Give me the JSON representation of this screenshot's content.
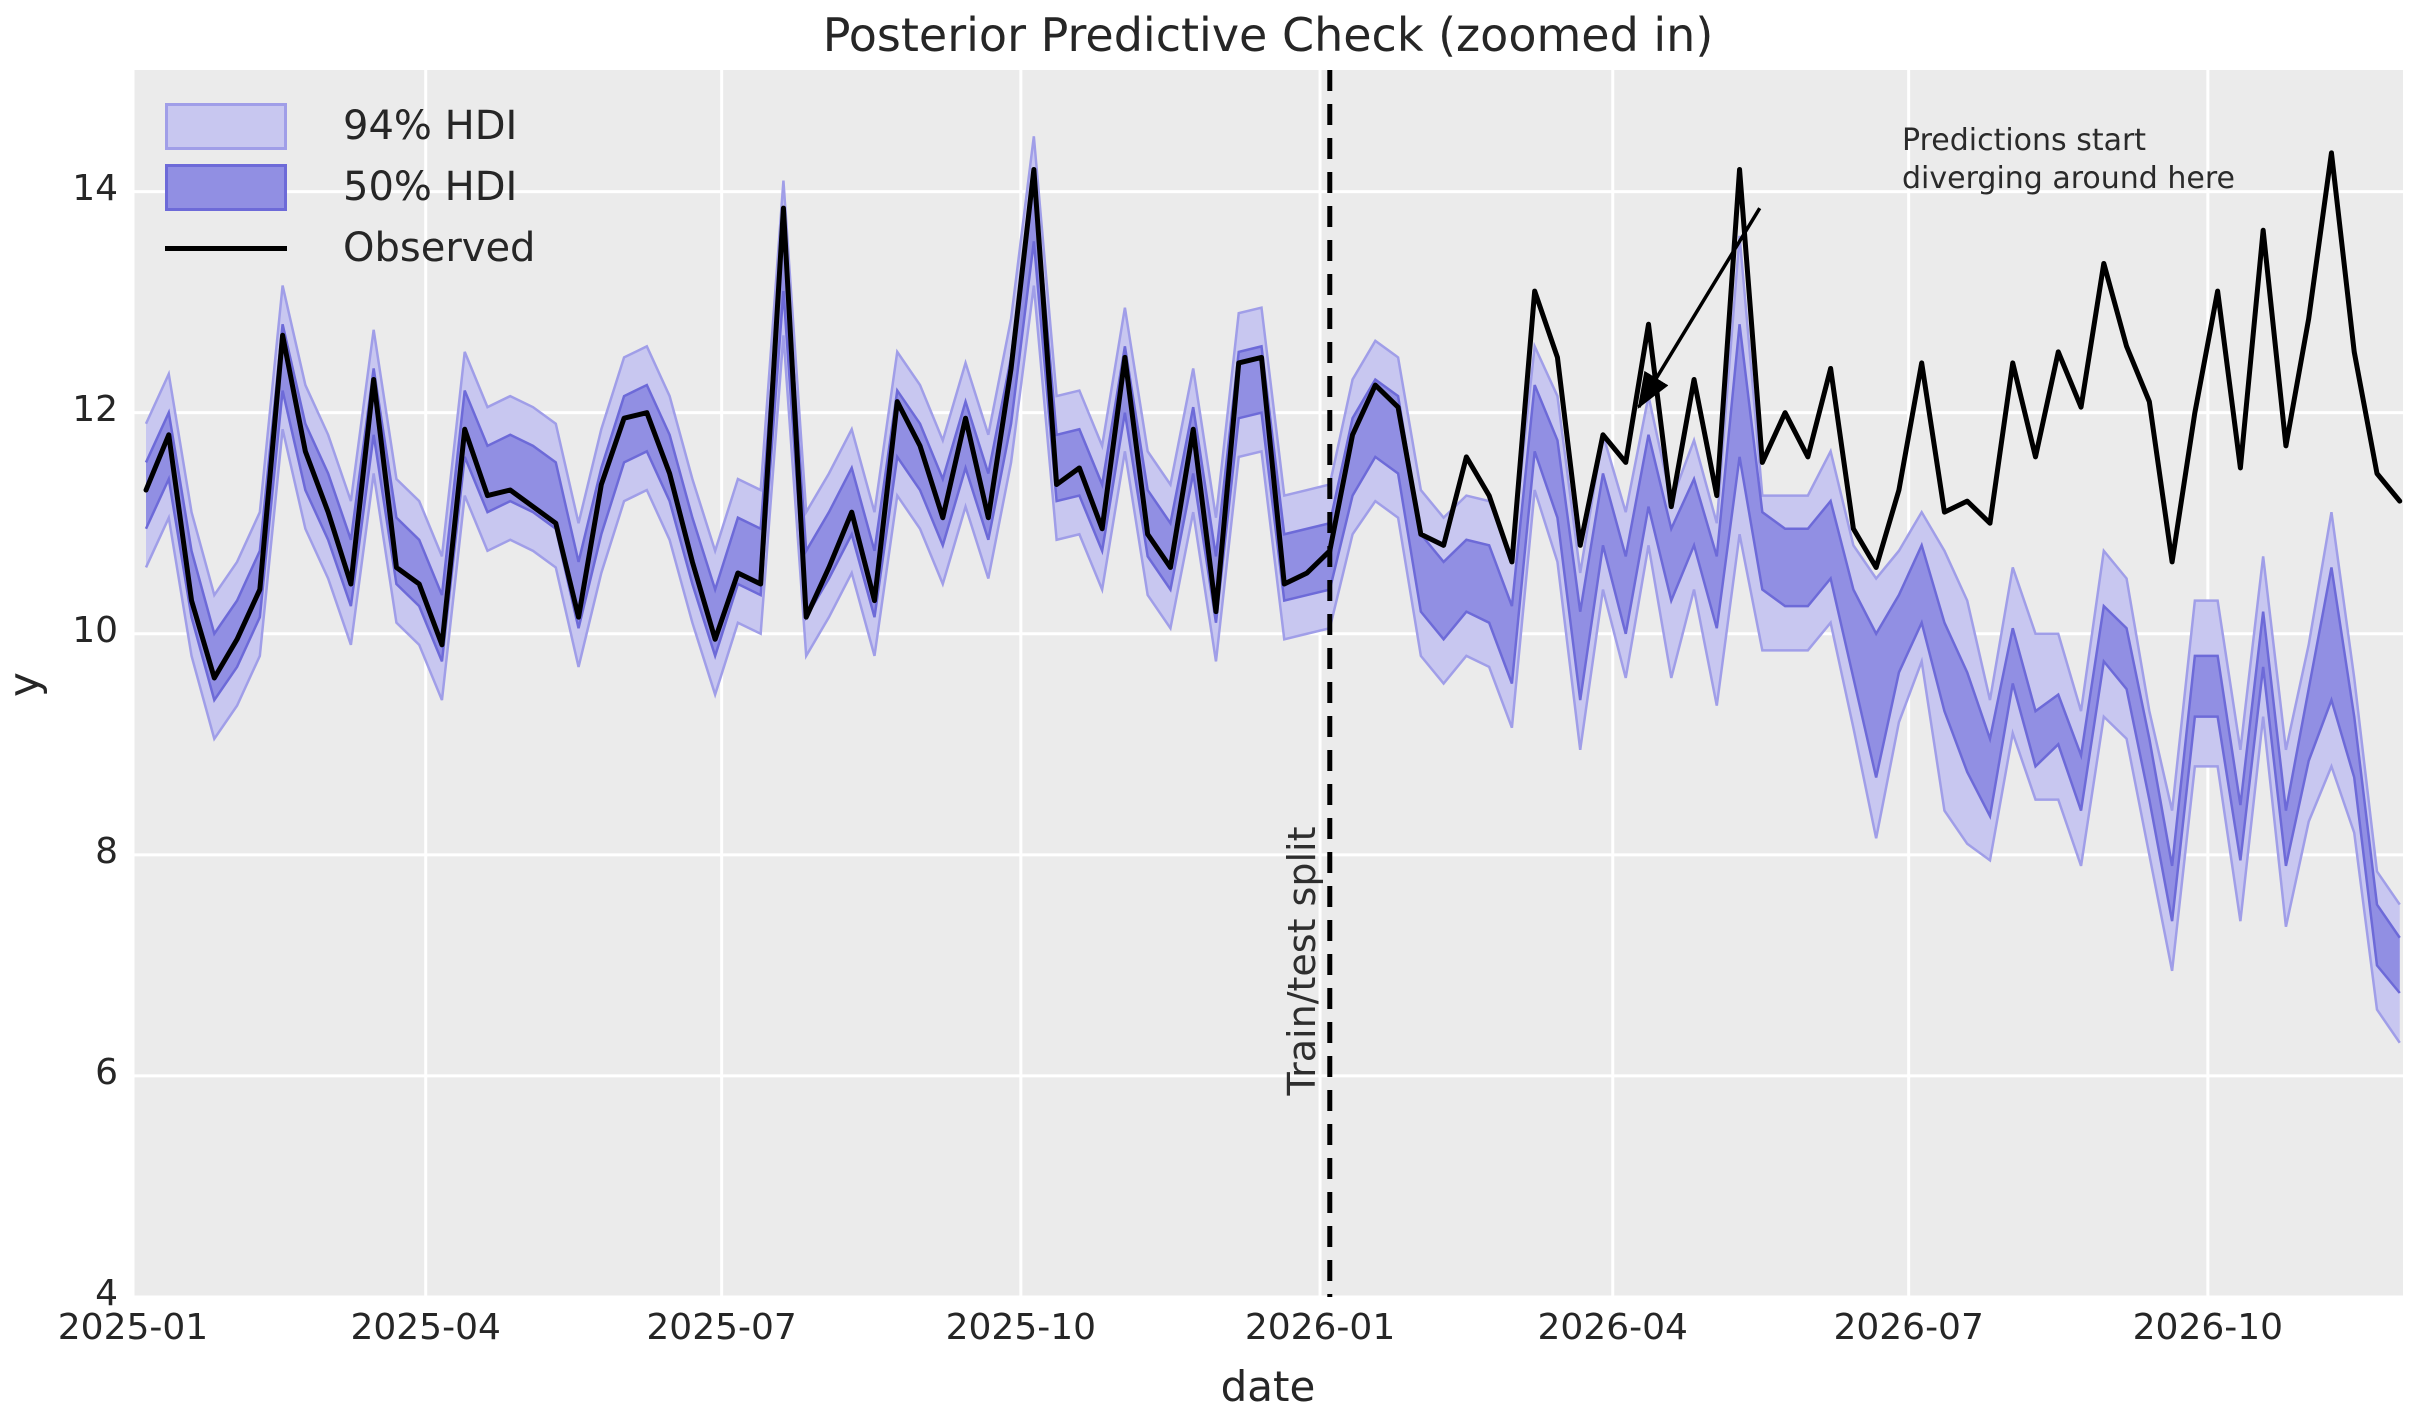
{
  "title": "Posterior Predictive Check (zoomed in)",
  "axis": {
    "xlabel": "date",
    "ylabel": "y",
    "x_ticks": [
      {
        "label": "2025-01",
        "day": 0
      },
      {
        "label": "2025-04",
        "day": 90
      },
      {
        "label": "2025-07",
        "day": 181
      },
      {
        "label": "2025-10",
        "day": 273
      },
      {
        "label": "2026-01",
        "day": 365
      },
      {
        "label": "2026-04",
        "day": 455
      },
      {
        "label": "2026-07",
        "day": 546
      },
      {
        "label": "2026-10",
        "day": 638
      }
    ],
    "y_ticks": [
      4,
      6,
      8,
      10,
      12,
      14
    ]
  },
  "legend": [
    {
      "label": "94% HDI",
      "kind": "band94"
    },
    {
      "label": "50% HDI",
      "kind": "band50"
    },
    {
      "label": "Observed",
      "kind": "line"
    }
  ],
  "split_label": "Train/test split",
  "annotation_lines": [
    "Predictions start",
    "diverging around here"
  ],
  "colors": {
    "plot_bg": "#ebebeb",
    "grid": "#ffffff",
    "observed": "#000000",
    "hdi94_fill": "#c8c7f0",
    "hdi94_edge": "#a09ee8",
    "hdi50_fill": "#918fe3",
    "hdi50_edge": "#6d6ad8",
    "split_line": "#000000",
    "text": "#262626"
  },
  "chart_data": {
    "type": "line",
    "title": "Posterior Predictive Check (zoomed in)",
    "xlabel": "date",
    "ylabel": "y",
    "xlim_days": [
      0,
      698
    ],
    "ylim": [
      4,
      15.1
    ],
    "grid": true,
    "legend_position": "upper left",
    "x_start_date": "2025-01-05",
    "x_start_day": 4,
    "x_step_days": 7,
    "n_points": 100,
    "split_date": "2026-01-04",
    "split_day": 368,
    "split_index": 52,
    "arrow": {
      "tail_day": 500.2,
      "tail_val": 13.85,
      "tip_day": 463.0,
      "tip_val": 12.05
    },
    "dates": [
      "2025-01-05",
      "2025-01-12",
      "2025-01-19",
      "2025-01-26",
      "2025-02-02",
      "2025-02-09",
      "2025-02-16",
      "2025-02-23",
      "2025-03-02",
      "2025-03-09",
      "2025-03-16",
      "2025-03-23",
      "2025-03-30",
      "2025-04-06",
      "2025-04-13",
      "2025-04-20",
      "2025-04-27",
      "2025-05-04",
      "2025-05-11",
      "2025-05-18",
      "2025-05-25",
      "2025-06-01",
      "2025-06-08",
      "2025-06-15",
      "2025-06-22",
      "2025-06-29",
      "2025-07-06",
      "2025-07-13",
      "2025-07-20",
      "2025-07-27",
      "2025-08-03",
      "2025-08-10",
      "2025-08-17",
      "2025-08-24",
      "2025-08-31",
      "2025-09-07",
      "2025-09-14",
      "2025-09-21",
      "2025-09-28",
      "2025-10-05",
      "2025-10-12",
      "2025-10-19",
      "2025-10-26",
      "2025-11-02",
      "2025-11-09",
      "2025-11-16",
      "2025-11-23",
      "2025-11-30",
      "2025-12-07",
      "2025-12-14",
      "2025-12-21",
      "2025-12-28",
      "2026-01-04",
      "2026-01-11",
      "2026-01-18",
      "2026-01-25",
      "2026-02-01",
      "2026-02-08",
      "2026-02-15",
      "2026-02-22",
      "2026-03-01",
      "2026-03-08",
      "2026-03-15",
      "2026-03-22",
      "2026-03-29",
      "2026-04-05",
      "2026-04-12",
      "2026-04-19",
      "2026-04-26",
      "2026-05-03",
      "2026-05-10",
      "2026-05-17",
      "2026-05-24",
      "2026-05-31",
      "2026-06-07",
      "2026-06-14",
      "2026-06-21",
      "2026-06-28",
      "2026-07-05",
      "2026-07-12",
      "2026-07-19",
      "2026-07-26",
      "2026-08-02",
      "2026-08-09",
      "2026-08-16",
      "2026-08-23",
      "2026-08-30",
      "2026-09-06",
      "2026-09-13",
      "2026-09-20",
      "2026-09-27",
      "2026-10-04",
      "2026-10-11",
      "2026-10-18",
      "2026-10-25",
      "2026-11-01",
      "2026-11-08",
      "2026-11-15",
      "2026-11-22",
      "2026-11-29"
    ],
    "series": [
      {
        "name": "Observed",
        "values": [
          11.3,
          11.8,
          10.3,
          9.6,
          9.95,
          10.4,
          12.7,
          11.65,
          11.1,
          10.45,
          12.3,
          10.6,
          10.45,
          9.9,
          11.85,
          11.25,
          11.3,
          11.15,
          11.0,
          10.15,
          11.35,
          11.95,
          12.0,
          11.45,
          10.65,
          9.95,
          10.55,
          10.45,
          13.85,
          10.15,
          10.6,
          11.1,
          10.3,
          12.1,
          11.7,
          11.05,
          11.95,
          11.05,
          12.4,
          14.2,
          11.35,
          11.5,
          10.95,
          12.5,
          10.9,
          10.6,
          11.85,
          10.2,
          12.45,
          12.5,
          10.45,
          10.55,
          10.75,
          11.8,
          12.25,
          12.05,
          10.9,
          10.8,
          11.6,
          11.25,
          10.65,
          13.1,
          12.5,
          10.8,
          11.8,
          11.55,
          12.8,
          11.15,
          12.3,
          11.25,
          14.2,
          11.55,
          12.0,
          11.6,
          12.4,
          10.95,
          10.6,
          11.3,
          12.45,
          11.1,
          11.2,
          11.0,
          12.45,
          11.6,
          12.55,
          12.05,
          13.35,
          12.6,
          12.1,
          10.65,
          12.0,
          13.1,
          11.5,
          13.65,
          11.7,
          12.85,
          14.35,
          12.55,
          11.45,
          11.2
        ]
      },
      {
        "name": "hdi94_lower",
        "values": [
          10.6,
          11.05,
          9.8,
          9.05,
          9.35,
          9.8,
          11.85,
          10.95,
          10.5,
          9.9,
          11.45,
          10.1,
          9.9,
          9.4,
          11.25,
          10.75,
          10.85,
          10.75,
          10.6,
          9.7,
          10.55,
          11.2,
          11.3,
          10.85,
          10.1,
          9.45,
          10.1,
          10.0,
          12.7,
          9.8,
          10.15,
          10.55,
          9.8,
          11.25,
          10.95,
          10.45,
          11.15,
          10.5,
          11.55,
          13.15,
          10.85,
          10.9,
          10.4,
          11.65,
          10.35,
          10.05,
          11.1,
          9.75,
          11.6,
          11.65,
          9.95,
          10.0,
          10.05,
          10.9,
          11.2,
          11.05,
          9.8,
          9.55,
          9.8,
          9.7,
          9.15,
          11.3,
          10.65,
          8.95,
          10.4,
          9.6,
          10.8,
          9.6,
          10.4,
          9.35,
          10.9,
          9.85,
          9.85,
          9.85,
          10.1,
          9.15,
          8.15,
          9.2,
          9.75,
          8.4,
          8.1,
          7.95,
          9.1,
          8.5,
          8.5,
          7.9,
          9.25,
          9.05,
          8.0,
          6.95,
          8.8,
          8.8,
          7.4,
          9.25,
          7.35,
          8.3,
          8.8,
          8.2,
          6.6,
          6.3
        ]
      },
      {
        "name": "hdi50_lower",
        "values": [
          10.95,
          11.4,
          10.15,
          9.4,
          9.7,
          10.15,
          12.2,
          11.3,
          10.85,
          10.25,
          11.8,
          10.45,
          10.25,
          9.75,
          11.6,
          11.1,
          11.2,
          11.1,
          10.95,
          10.05,
          10.9,
          11.55,
          11.65,
          11.2,
          10.45,
          9.8,
          10.45,
          10.35,
          13.1,
          10.15,
          10.5,
          10.9,
          10.15,
          11.6,
          11.3,
          10.8,
          11.5,
          10.85,
          11.9,
          13.55,
          11.2,
          11.25,
          10.75,
          12.0,
          10.7,
          10.4,
          11.45,
          10.1,
          11.95,
          12.0,
          10.3,
          10.35,
          10.4,
          11.25,
          11.6,
          11.45,
          10.2,
          9.95,
          10.2,
          10.1,
          9.55,
          11.65,
          11.05,
          9.4,
          10.8,
          10.0,
          11.15,
          10.3,
          10.8,
          10.05,
          11.6,
          10.4,
          10.25,
          10.25,
          10.5,
          9.6,
          8.7,
          9.65,
          10.1,
          9.3,
          8.75,
          8.35,
          9.55,
          8.8,
          9.0,
          8.4,
          9.75,
          9.5,
          8.5,
          7.4,
          9.25,
          9.25,
          7.95,
          9.7,
          7.9,
          8.85,
          9.4,
          8.7,
          7.0,
          6.75
        ]
      },
      {
        "name": "hdi50_upper",
        "values": [
          11.55,
          12.0,
          10.75,
          10.0,
          10.3,
          10.75,
          12.8,
          11.9,
          11.45,
          10.85,
          12.4,
          11.05,
          10.85,
          10.35,
          12.2,
          11.7,
          11.8,
          11.7,
          11.55,
          10.65,
          11.5,
          12.15,
          12.25,
          11.8,
          11.05,
          10.4,
          11.05,
          10.95,
          13.7,
          10.75,
          11.1,
          11.5,
          10.75,
          12.2,
          11.9,
          11.4,
          12.1,
          11.45,
          12.5,
          14.15,
          11.8,
          11.85,
          11.35,
          12.6,
          11.3,
          11.0,
          12.05,
          10.7,
          12.55,
          12.6,
          10.9,
          10.95,
          11.0,
          11.95,
          12.3,
          12.15,
          10.9,
          10.65,
          10.85,
          10.8,
          10.25,
          12.25,
          11.75,
          10.2,
          11.45,
          10.7,
          11.8,
          10.95,
          11.4,
          10.7,
          12.8,
          11.1,
          10.95,
          10.95,
          11.2,
          10.4,
          10.0,
          10.35,
          10.8,
          10.1,
          9.65,
          9.05,
          10.05,
          9.3,
          9.45,
          8.9,
          10.25,
          10.05,
          9.05,
          7.9,
          9.8,
          9.8,
          8.45,
          10.2,
          8.4,
          9.5,
          10.6,
          9.25,
          7.55,
          7.25
        ]
      },
      {
        "name": "hdi94_upper",
        "values": [
          11.9,
          12.35,
          11.1,
          10.35,
          10.65,
          11.1,
          13.15,
          12.25,
          11.8,
          11.2,
          12.75,
          11.4,
          11.2,
          10.7,
          12.55,
          12.05,
          12.15,
          12.05,
          11.9,
          11.0,
          11.85,
          12.5,
          12.6,
          12.15,
          11.4,
          10.75,
          11.4,
          11.3,
          14.1,
          11.1,
          11.45,
          11.85,
          11.1,
          12.55,
          12.25,
          11.75,
          12.45,
          11.8,
          12.85,
          14.5,
          12.15,
          12.2,
          11.7,
          12.95,
          11.65,
          11.35,
          12.4,
          11.05,
          12.9,
          12.95,
          11.25,
          11.3,
          11.35,
          12.3,
          12.65,
          12.5,
          11.3,
          11.05,
          11.25,
          11.2,
          10.7,
          12.6,
          12.15,
          10.55,
          11.8,
          11.1,
          12.15,
          11.2,
          11.75,
          11.0,
          13.6,
          11.25,
          11.25,
          11.25,
          11.65,
          10.8,
          10.5,
          10.75,
          11.1,
          10.75,
          10.3,
          9.4,
          10.6,
          10.0,
          10.0,
          9.3,
          10.75,
          10.5,
          9.3,
          8.4,
          10.3,
          10.3,
          8.95,
          10.7,
          8.95,
          9.9,
          11.1,
          9.6,
          7.85,
          7.55
        ]
      }
    ]
  }
}
